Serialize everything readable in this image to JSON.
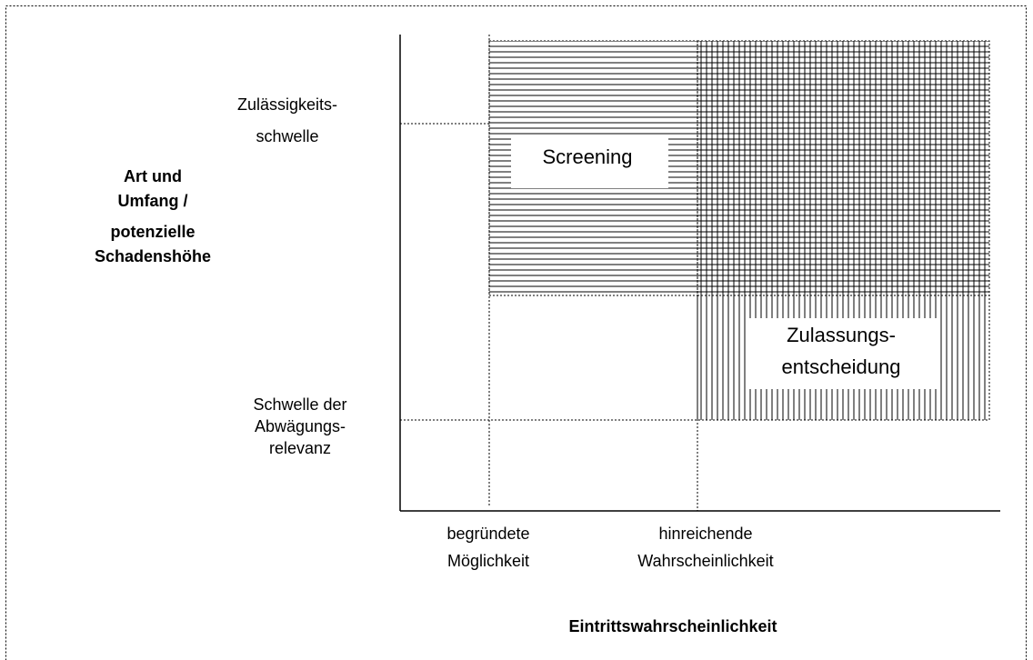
{
  "y_axis": {
    "title_lines": [
      "Art und",
      "Umfang /",
      "potenzielle",
      "Schadenshöhe"
    ],
    "thresholds": [
      {
        "lines": [
          "Zulässigkeits-",
          "schwelle"
        ]
      },
      {
        "lines": [
          "Schwelle der",
          "Abwägungs-",
          "relevanz"
        ]
      }
    ]
  },
  "x_axis": {
    "title": "Eintrittswahrscheinlichkeit",
    "thresholds": [
      {
        "lines": [
          "begründete",
          "Möglichkeit"
        ]
      },
      {
        "lines": [
          "hinreichende",
          "Wahrscheinlichkeit"
        ]
      }
    ]
  },
  "regions": [
    {
      "lines": [
        "Screening"
      ]
    },
    {
      "lines": [
        "Zulassungs-",
        "entscheidung"
      ]
    }
  ]
}
